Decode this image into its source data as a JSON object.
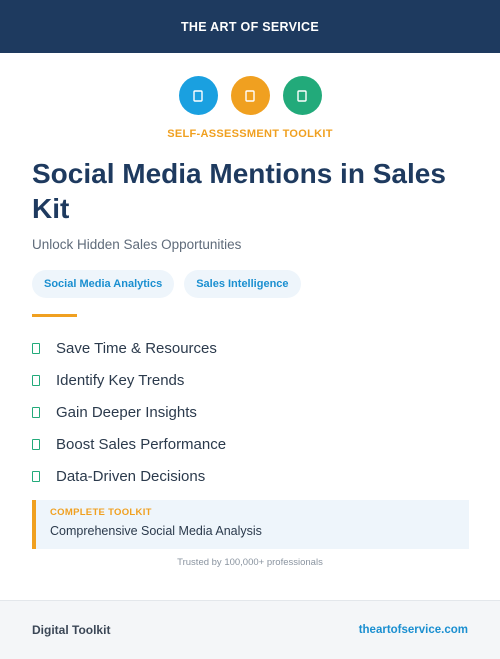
{
  "header": {
    "title": "THE ART OF SERVICE"
  },
  "icons": [
    {
      "name": "blue-badge-icon",
      "color": "#1aa0e0"
    },
    {
      "name": "orange-badge-icon",
      "color": "#f0a020"
    },
    {
      "name": "green-badge-icon",
      "color": "#22aa7a"
    }
  ],
  "eyebrow": "SELF-ASSESSMENT TOOLKIT",
  "title": "Social Media Mentions in Sales Kit",
  "subtitle": "Unlock Hidden Sales Opportunities",
  "tags": [
    "Social Media Analytics",
    "Sales Intelligence"
  ],
  "features": [
    "Save Time & Resources",
    "Identify Key Trends",
    "Gain Deeper Insights",
    "Boost Sales Performance",
    "Data-Driven Decisions"
  ],
  "callout": {
    "label": "COMPLETE TOOLKIT",
    "text": "Comprehensive Social Media Analysis"
  },
  "trusted": "Trusted by 100,000+ professionals",
  "footer": {
    "left": "Digital Toolkit",
    "link": "theartofservice.com"
  },
  "colors": {
    "navy": "#1e3a5f",
    "accent_orange": "#f0a020",
    "accent_blue": "#1a8fd0",
    "accent_green": "#22aa7a"
  }
}
